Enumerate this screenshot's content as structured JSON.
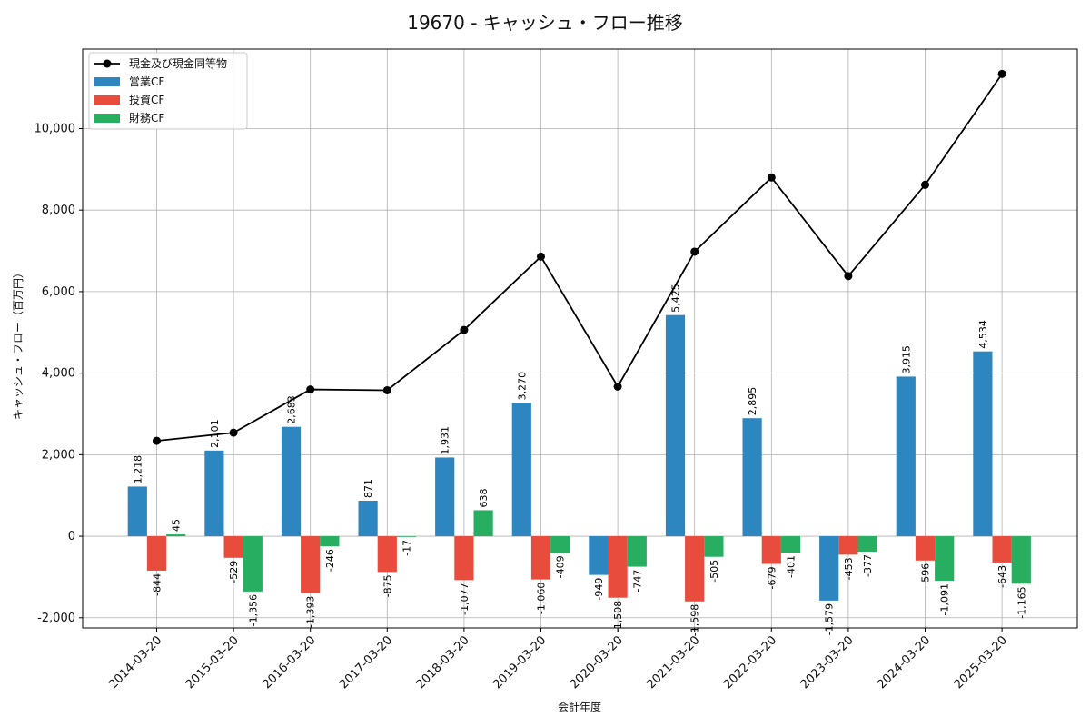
{
  "chart_data": {
    "type": "bar",
    "title": "19670 - キャッシュ・フロー推移",
    "xlabel": "会計年度",
    "ylabel": "キャッシュ・フロー（百万円）",
    "categories": [
      "2014-03-20",
      "2015-03-20",
      "2016-03-20",
      "2017-03-20",
      "2018-03-20",
      "2019-03-20",
      "2020-03-20",
      "2021-03-20",
      "2022-03-20",
      "2023-03-20",
      "2024-03-20",
      "2025-03-20"
    ],
    "ylim": [
      -2250,
      11950
    ],
    "yticks": [
      -2000,
      0,
      2000,
      4000,
      6000,
      8000,
      10000
    ],
    "ytick_labels": [
      "-2,000",
      "0",
      "2,000",
      "4,000",
      "6,000",
      "8,000",
      "10,000"
    ],
    "grid": true,
    "legend_position": "top-left",
    "series": [
      {
        "name": "営業CF",
        "kind": "bar",
        "color": "#2e86c1",
        "values": [
          1218,
          2101,
          2683,
          871,
          1931,
          3270,
          -949,
          5425,
          2895,
          -1579,
          3915,
          4534
        ],
        "labels": [
          "1,218",
          "2,101",
          "2,683",
          "871",
          "1,931",
          "3,270",
          "-949",
          "5,425",
          "2,895",
          "-1,579",
          "3,915",
          "4,534"
        ]
      },
      {
        "name": "投資CF",
        "kind": "bar",
        "color": "#e74c3c",
        "values": [
          -844,
          -529,
          -1393,
          -875,
          -1077,
          -1060,
          -1508,
          -1598,
          -679,
          -453,
          -596,
          -643
        ],
        "labels": [
          "-844",
          "-529",
          "-1,393",
          "-875",
          "-1,077",
          "-1,060",
          "-1,508",
          "-1,598",
          "-679",
          "-453",
          "-596",
          "-643"
        ]
      },
      {
        "name": "財務CF",
        "kind": "bar",
        "color": "#27ae60",
        "values": [
          45,
          -1356,
          -246,
          -17,
          638,
          -409,
          -747,
          -505,
          -401,
          -377,
          -1091,
          -1165
        ],
        "labels": [
          "45",
          "-1,356",
          "-246",
          "-17",
          "638",
          "-409",
          "-747",
          "-505",
          "-401",
          "-377",
          "-1,091",
          "-1,165"
        ]
      },
      {
        "name": "現金及び現金同等物",
        "kind": "line",
        "color": "#000000",
        "values": [
          2340,
          2540,
          3600,
          3580,
          5060,
          6860,
          3670,
          6980,
          8800,
          6380,
          8620,
          11340
        ]
      }
    ]
  }
}
